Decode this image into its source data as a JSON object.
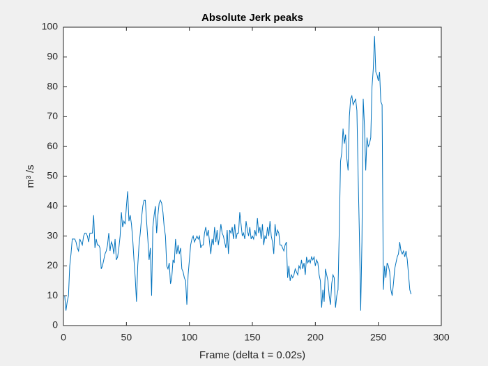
{
  "chart_data": {
    "type": "line",
    "title": "Absolute Jerk peaks",
    "xlabel": "Frame (delta t = 0.02s)",
    "ylabel": "m³ /s",
    "x": [
      1,
      2,
      3,
      4,
      5,
      6,
      7,
      8,
      9,
      10,
      11,
      12,
      13,
      14,
      15,
      16,
      17,
      18,
      19,
      20,
      21,
      22,
      23,
      24,
      25,
      26,
      27,
      28,
      29,
      30,
      31,
      32,
      33,
      34,
      35,
      36,
      37,
      38,
      39,
      40,
      41,
      42,
      43,
      44,
      45,
      46,
      47,
      48,
      49,
      50,
      51,
      52,
      53,
      54,
      55,
      56,
      57,
      58,
      59,
      60,
      61,
      62,
      63,
      64,
      65,
      66,
      67,
      68,
      69,
      70,
      71,
      72,
      73,
      74,
      75,
      76,
      77,
      78,
      79,
      80,
      81,
      82,
      83,
      84,
      85,
      86,
      87,
      88,
      89,
      90,
      91,
      92,
      93,
      94,
      95,
      96,
      97,
      98,
      99,
      100,
      101,
      102,
      103,
      104,
      105,
      106,
      107,
      108,
      109,
      110,
      111,
      112,
      113,
      114,
      115,
      116,
      117,
      118,
      119,
      120,
      121,
      122,
      123,
      124,
      125,
      126,
      127,
      128,
      129,
      130,
      131,
      132,
      133,
      134,
      135,
      136,
      137,
      138,
      139,
      140,
      141,
      142,
      143,
      144,
      145,
      146,
      147,
      148,
      149,
      150,
      151,
      152,
      153,
      154,
      155,
      156,
      157,
      158,
      159,
      160,
      161,
      162,
      163,
      164,
      165,
      166,
      167,
      168,
      169,
      170,
      171,
      172,
      173,
      174,
      175,
      176,
      177,
      178,
      179,
      180,
      181,
      182,
      183,
      184,
      185,
      186,
      187,
      188,
      189,
      190,
      191,
      192,
      193,
      194,
      195,
      196,
      197,
      198,
      199,
      200,
      201,
      202,
      203,
      204,
      205,
      206,
      207,
      208,
      209,
      210,
      211,
      212,
      213,
      214,
      215,
      216,
      217,
      218,
      219,
      220,
      221,
      222,
      223,
      224,
      225,
      226,
      227,
      228,
      229,
      230,
      231,
      232,
      233,
      234,
      235,
      236,
      237,
      238,
      239,
      240,
      241,
      242,
      243,
      244,
      245,
      246,
      247,
      248,
      249,
      250,
      251,
      252,
      253,
      254,
      255,
      256,
      257,
      258,
      259,
      260,
      261,
      262,
      263,
      264,
      265,
      266,
      267,
      268,
      269,
      270,
      271,
      272,
      273,
      274,
      275,
      276
    ],
    "series": [
      {
        "color": "#0072bd",
        "values": [
          10,
          5,
          8,
          10,
          20,
          24,
          29,
          29,
          29,
          28,
          26,
          25,
          29,
          28,
          27,
          30,
          31,
          31,
          30,
          28,
          31,
          31,
          31,
          37,
          26,
          29,
          27,
          27,
          26,
          19,
          20,
          22,
          24,
          25,
          27,
          31,
          25,
          28,
          27,
          24,
          29,
          22,
          23,
          26,
          30,
          38,
          33,
          35,
          34,
          40,
          45,
          35,
          37,
          34,
          29,
          22,
          16,
          8,
          20,
          27,
          31,
          36,
          40,
          42,
          42,
          35,
          29,
          22,
          26,
          10,
          33,
          37,
          40,
          31,
          37,
          41,
          42,
          41,
          38,
          33,
          30,
          20,
          19,
          21,
          14,
          16,
          22,
          21,
          29,
          24,
          27,
          24,
          26,
          19,
          18,
          16,
          15,
          7,
          17,
          22,
          27,
          29,
          30,
          28,
          29,
          30,
          29,
          30,
          26,
          27,
          27,
          31,
          33,
          30,
          32,
          28,
          24,
          29,
          27,
          33,
          28,
          32,
          27,
          30,
          34,
          31,
          30,
          28,
          26,
          32,
          24,
          32,
          31,
          33,
          29,
          34,
          29,
          31,
          31,
          38,
          34,
          30,
          31,
          29,
          35,
          32,
          30,
          33,
          29,
          30,
          29,
          32,
          30,
          36,
          31,
          33,
          29,
          34,
          27,
          30,
          29,
          33,
          30,
          35,
          30,
          28,
          24,
          34,
          30,
          32,
          31,
          27,
          27,
          26,
          25,
          27,
          28,
          16,
          20,
          15,
          17,
          16,
          17,
          19,
          18,
          17,
          20,
          19,
          22,
          19,
          21,
          17,
          23,
          21,
          22,
          21,
          23,
          22,
          23,
          20,
          22,
          21,
          17,
          15,
          6,
          12,
          8,
          19,
          17,
          15,
          10,
          7,
          14,
          17,
          16,
          6,
          10,
          12,
          32,
          55,
          58,
          66,
          61,
          64,
          56,
          52,
          70,
          76,
          77,
          74,
          75,
          76,
          72,
          50,
          30,
          5,
          28,
          76,
          67,
          52,
          63,
          60,
          61,
          63,
          80,
          86,
          97,
          85,
          84,
          82,
          85,
          75,
          74,
          12,
          20,
          16,
          21,
          20,
          18,
          12,
          10,
          14,
          19,
          21,
          23,
          24,
          28,
          25,
          24,
          25,
          23,
          25,
          22,
          17,
          12,
          10.5
        ]
      }
    ],
    "xlim": [
      0,
      300
    ],
    "xticks": [
      0,
      50,
      100,
      150,
      200,
      250,
      300
    ],
    "ylim": [
      0,
      100
    ],
    "yticks": [
      0,
      10,
      20,
      30,
      40,
      50,
      60,
      70,
      80,
      90,
      100
    ]
  }
}
